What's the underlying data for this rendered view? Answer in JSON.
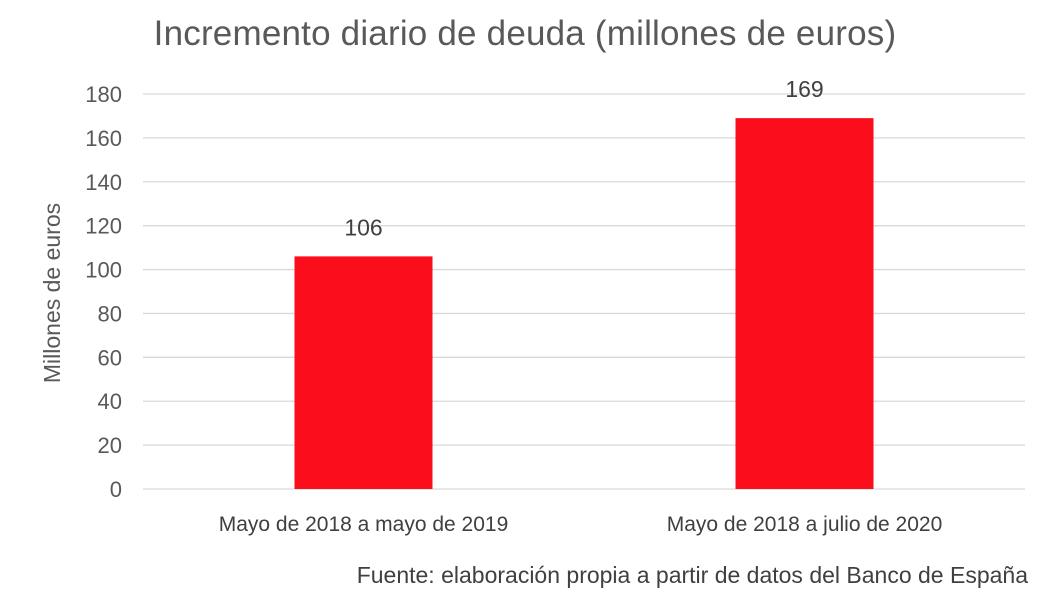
{
  "chart_data": {
    "type": "bar",
    "title": "Incremento diario de deuda (millones de euros)",
    "categories": [
      "Mayo de 2018 a mayo de 2019",
      "Mayo de 2018 a julio de 2020"
    ],
    "values": [
      106,
      169
    ],
    "data_labels": [
      "106",
      "169"
    ],
    "xlabel": "",
    "ylabel": "Millones de euros",
    "ylim": [
      0,
      180
    ],
    "yticks": [
      0,
      20,
      40,
      60,
      80,
      100,
      120,
      140,
      160,
      180
    ],
    "grid": true,
    "bar_color": "#fc0d1b",
    "grid_color": "#d9d9d9",
    "text_color": "#595959"
  },
  "source_note": "Fuente: elaboración propia a partir de datos del Banco de España"
}
